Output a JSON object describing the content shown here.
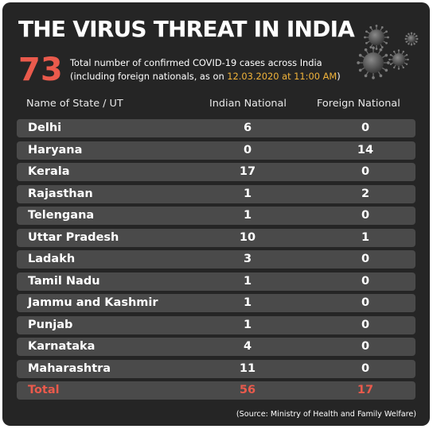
{
  "title": "THE VIRUS THREAT IN INDIA",
  "total_cases": "73",
  "subtitle": {
    "line1": "Total number of confirmed COVID-19 cases across India",
    "line2_prefix": "(including foreign nationals, as on ",
    "date": "12.03.2020 at 11:00 AM",
    "line2_suffix": ")"
  },
  "columns": {
    "state": "Name of State / UT",
    "indian": "Indian National",
    "foreign": "Foreign National"
  },
  "rows": [
    {
      "state": "Delhi",
      "indian": "6",
      "foreign": "0"
    },
    {
      "state": "Haryana",
      "indian": "0",
      "foreign": "14"
    },
    {
      "state": "Kerala",
      "indian": "17",
      "foreign": "0"
    },
    {
      "state": "Rajasthan",
      "indian": "1",
      "foreign": "2"
    },
    {
      "state": "Telengana",
      "indian": "1",
      "foreign": "0"
    },
    {
      "state": "Uttar Pradesh",
      "indian": "10",
      "foreign": "1"
    },
    {
      "state": "Ladakh",
      "indian": "3",
      "foreign": "0"
    },
    {
      "state": "Tamil Nadu",
      "indian": "1",
      "foreign": "0"
    },
    {
      "state": "Jammu and Kashmir",
      "indian": "1",
      "foreign": "0"
    },
    {
      "state": "Punjab",
      "indian": "1",
      "foreign": "0"
    },
    {
      "state": "Karnataka",
      "indian": "4",
      "foreign": "0"
    },
    {
      "state": "Maharashtra",
      "indian": "11",
      "foreign": "0"
    }
  ],
  "total": {
    "state": "Total",
    "indian": "56",
    "foreign": "17"
  },
  "source": "(Source: Ministry of Health and Family Welfare)",
  "colors": {
    "background": "#252525",
    "row": "#4a4a4a",
    "accent": "#ea5a4c",
    "date": "#f2b43a"
  },
  "icons": [
    "coronavirus-icon"
  ]
}
